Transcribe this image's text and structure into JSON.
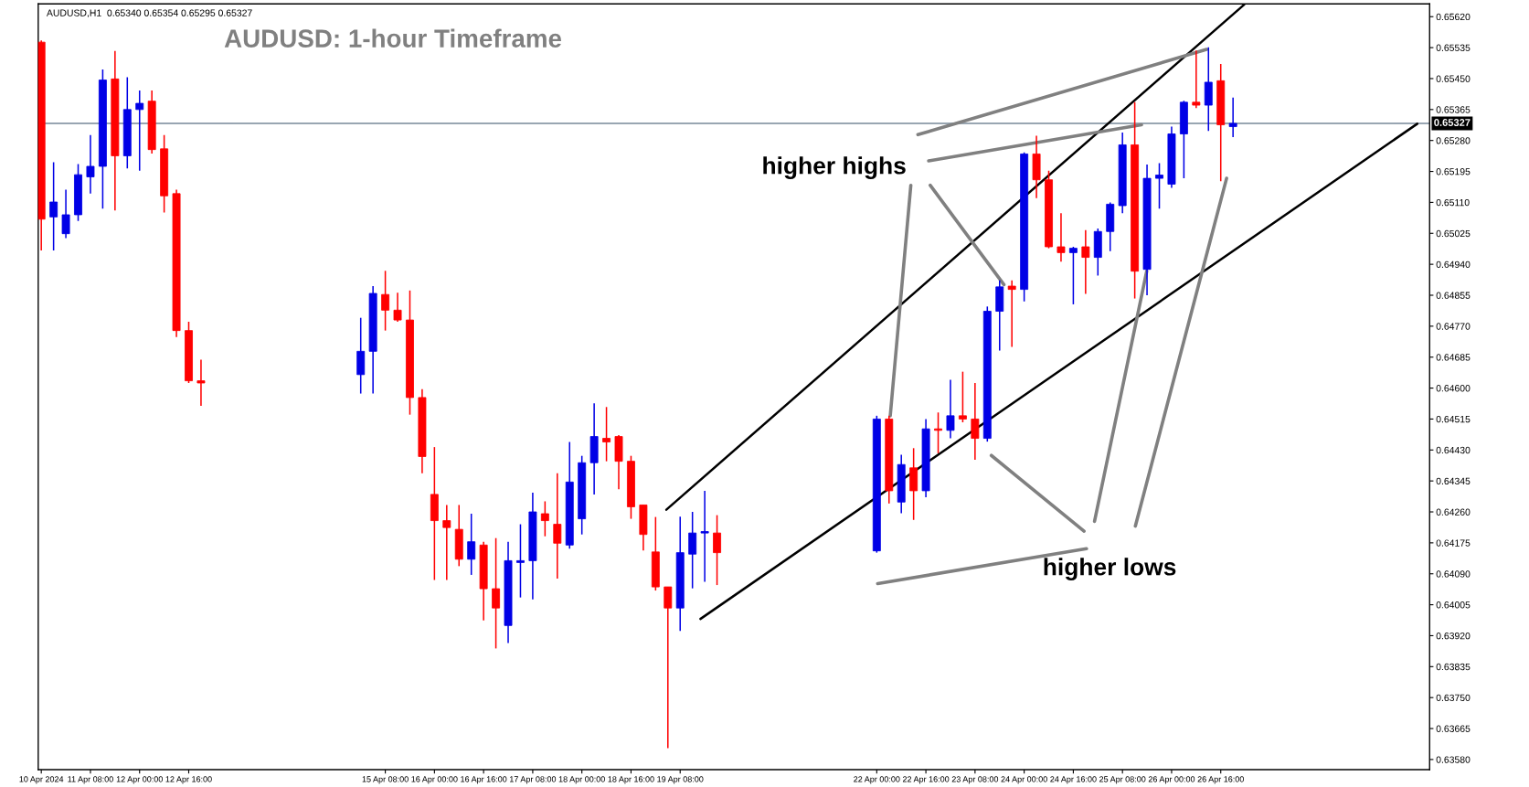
{
  "chart_data": {
    "type": "candlestick",
    "title": "AUDUSD: 1-hour Timeframe",
    "subtitle": "AUDUSD,H1  0.65340 0.65354 0.65295 0.65327",
    "x": [
      "2024-04-10T16:00",
      "2024-04-10T20:00",
      "2024-04-11T00:00",
      "2024-04-11T04:00",
      "2024-04-11T08:00",
      "2024-04-11T12:00",
      "2024-04-11T16:00",
      "2024-04-11T20:00",
      "2024-04-12T00:00",
      "2024-04-12T04:00",
      "2024-04-12T08:00",
      "2024-04-12T12:00",
      "2024-04-12T16:00",
      "2024-04-12T20:00",
      "2024-04-15T00:00",
      "2024-04-15T04:00",
      "2024-04-15T08:00",
      "2024-04-15T12:00",
      "2024-04-15T16:00",
      "2024-04-15T20:00",
      "2024-04-16T00:00",
      "2024-04-16T04:00",
      "2024-04-16T08:00",
      "2024-04-16T12:00",
      "2024-04-16T16:00",
      "2024-04-16T20:00",
      "2024-04-17T00:00",
      "2024-04-17T04:00",
      "2024-04-17T08:00",
      "2024-04-17T12:00",
      "2024-04-17T16:00",
      "2024-04-17T20:00",
      "2024-04-18T00:00",
      "2024-04-18T04:00",
      "2024-04-18T08:00",
      "2024-04-18T12:00",
      "2024-04-18T16:00",
      "2024-04-18T20:00",
      "2024-04-19T00:00",
      "2024-04-19T04:00",
      "2024-04-19T08:00",
      "2024-04-19T12:00",
      "2024-04-19T16:00",
      "2024-04-19T20:00",
      "2024-04-22T00:00",
      "2024-04-22T04:00",
      "2024-04-22T08:00",
      "2024-04-22T12:00",
      "2024-04-22T16:00",
      "2024-04-22T20:00",
      "2024-04-23T00:00",
      "2024-04-23T04:00",
      "2024-04-23T08:00",
      "2024-04-23T12:00",
      "2024-04-23T16:00",
      "2024-04-23T20:00",
      "2024-04-24T00:00",
      "2024-04-24T04:00",
      "2024-04-24T08:00",
      "2024-04-24T12:00",
      "2024-04-24T16:00",
      "2024-04-24T20:00",
      "2024-04-25T00:00",
      "2024-04-25T04:00",
      "2024-04-25T08:00",
      "2024-04-25T12:00",
      "2024-04-25T16:00",
      "2024-04-25T20:00",
      "2024-04-26T00:00",
      "2024-04-26T04:00",
      "2024-04-26T08:00",
      "2024-04-26T12:00",
      "2024-04-26T16:00",
      "2024-04-26T20:00"
    ],
    "ohlc": [
      [
        0.6555,
        0.65555,
        0.64978,
        0.65064
      ],
      [
        0.6507,
        0.6522,
        0.64978,
        0.65111
      ],
      [
        0.65024,
        0.65145,
        0.65012,
        0.65076
      ],
      [
        0.65076,
        0.65215,
        0.65059,
        0.65186
      ],
      [
        0.6518,
        0.65295,
        0.65134,
        0.65209
      ],
      [
        0.65209,
        0.65475,
        0.65093,
        0.65446
      ],
      [
        0.65449,
        0.65526,
        0.65088,
        0.65238
      ],
      [
        0.65238,
        0.65454,
        0.65203,
        0.65365
      ],
      [
        0.65365,
        0.65417,
        0.65197,
        0.65382
      ],
      [
        0.65388,
        0.65417,
        0.65244,
        0.65255
      ],
      [
        0.65257,
        0.65295,
        0.65082,
        0.65128
      ],
      [
        0.65134,
        0.65145,
        0.6474,
        0.64758
      ],
      [
        0.64758,
        0.64782,
        0.64614,
        0.6462
      ],
      [
        0.6462,
        0.64678,
        0.64551,
        0.64614
      ],
      [
        0.64637,
        0.64793,
        0.64585,
        0.64701
      ],
      [
        0.64701,
        0.6488,
        0.64585,
        0.6486
      ],
      [
        0.64857,
        0.64922,
        0.64758,
        0.64814
      ],
      [
        0.64814,
        0.64862,
        0.64782,
        0.64787
      ],
      [
        0.64787,
        0.64868,
        0.64527,
        0.64574
      ],
      [
        0.64574,
        0.64597,
        0.64366,
        0.64412
      ],
      [
        0.64308,
        0.64438,
        0.64073,
        0.64236
      ],
      [
        0.64236,
        0.64279,
        0.64073,
        0.64217
      ],
      [
        0.64212,
        0.64279,
        0.64111,
        0.6413
      ],
      [
        0.6413,
        0.64255,
        0.64087,
        0.64178
      ],
      [
        0.64169,
        0.64178,
        0.63962,
        0.64049
      ],
      [
        0.64049,
        0.64188,
        0.63885,
        0.63996
      ],
      [
        0.63948,
        0.64178,
        0.639,
        0.64126
      ],
      [
        0.64121,
        0.64226,
        0.64025,
        0.64126
      ],
      [
        0.64126,
        0.64313,
        0.6402,
        0.6426
      ],
      [
        0.64255,
        0.64289,
        0.64193,
        0.64236
      ],
      [
        0.64226,
        0.64366,
        0.64077,
        0.64174
      ],
      [
        0.64169,
        0.64452,
        0.64159,
        0.64342
      ],
      [
        0.64241,
        0.64414,
        0.64198,
        0.64395
      ],
      [
        0.64395,
        0.64558,
        0.64308,
        0.64467
      ],
      [
        0.64462,
        0.64548,
        0.64399,
        0.64452
      ],
      [
        0.64467,
        0.64471,
        0.64322,
        0.64399
      ],
      [
        0.64399,
        0.64414,
        0.64241,
        0.64274
      ],
      [
        0.64279,
        0.64279,
        0.64154,
        0.64198
      ],
      [
        0.6415,
        0.64246,
        0.64044,
        0.64054
      ],
      [
        0.64054,
        0.64054,
        0.63611,
        0.63996
      ],
      [
        0.63996,
        0.64247,
        0.63933,
        0.64148
      ],
      [
        0.64144,
        0.6426,
        0.6405,
        0.64202
      ],
      [
        0.64202,
        0.64318,
        0.64068,
        0.64206
      ],
      [
        0.64202,
        0.64251,
        0.64059,
        0.64148
      ],
      [
        0.64153,
        0.64524,
        0.64148,
        0.64515
      ],
      [
        0.64515,
        0.64524,
        0.64283,
        0.64318
      ],
      [
        0.64287,
        0.64417,
        0.64256,
        0.6439
      ],
      [
        0.64381,
        0.64435,
        0.64238,
        0.64318
      ],
      [
        0.64318,
        0.64515,
        0.643,
        0.64488
      ],
      [
        0.64488,
        0.64533,
        0.64421,
        0.64484
      ],
      [
        0.64484,
        0.64623,
        0.64462,
        0.64524
      ],
      [
        0.64524,
        0.64645,
        0.64506,
        0.64515
      ],
      [
        0.64515,
        0.64614,
        0.64403,
        0.64462
      ],
      [
        0.64462,
        0.64824,
        0.64453,
        0.64811
      ],
      [
        0.64811,
        0.64896,
        0.64703,
        0.64878
      ],
      [
        0.6488,
        0.64896,
        0.64713,
        0.64871
      ],
      [
        0.64871,
        0.65247,
        0.64838,
        0.65243
      ],
      [
        0.65243,
        0.65293,
        0.65122,
        0.65172
      ],
      [
        0.65172,
        0.65197,
        0.64984,
        0.64988
      ],
      [
        0.64988,
        0.6508,
        0.64947,
        0.64972
      ],
      [
        0.64972,
        0.64988,
        0.6483,
        0.64984
      ],
      [
        0.64988,
        0.65034,
        0.64859,
        0.64959
      ],
      [
        0.64959,
        0.65038,
        0.64909,
        0.6503
      ],
      [
        0.6503,
        0.6511,
        0.64976,
        0.65105
      ],
      [
        0.65101,
        0.65302,
        0.6508,
        0.65268
      ],
      [
        0.65268,
        0.65385,
        0.64846,
        0.64921
      ],
      [
        0.64926,
        0.65214,
        0.64855,
        0.65176
      ],
      [
        0.65176,
        0.65218,
        0.65093,
        0.65185
      ],
      [
        0.6516,
        0.65318,
        0.6515,
        0.65298
      ],
      [
        0.65298,
        0.65389,
        0.65176,
        0.65385
      ],
      [
        0.65385,
        0.65527,
        0.65369,
        0.65377
      ],
      [
        0.65377,
        0.65536,
        0.65306,
        0.6544
      ],
      [
        0.65444,
        0.6549,
        0.65168,
        0.65323
      ],
      [
        0.65318,
        0.65398,
        0.65289,
        0.65327
      ]
    ],
    "colors": [
      "#ff0000",
      "#0000e6",
      "#0000e6",
      "#0000e6",
      "#0000e6",
      "#0000e6",
      "#ff0000",
      "#0000e6",
      "#0000e6",
      "#ff0000",
      "#ff0000",
      "#ff0000",
      "#ff0000",
      "#ff0000",
      "#0000e6",
      "#0000e6",
      "#ff0000",
      "#ff0000",
      "#ff0000",
      "#ff0000",
      "#ff0000",
      "#ff0000",
      "#ff0000",
      "#0000e6",
      "#ff0000",
      "#ff0000",
      "#0000e6",
      "#0000e6",
      "#0000e6",
      "#ff0000",
      "#ff0000",
      "#0000e6",
      "#0000e6",
      "#0000e6",
      "#ff0000",
      "#ff0000",
      "#ff0000",
      "#ff0000",
      "#ff0000",
      "#ff0000",
      "#0000e6",
      "#0000e6",
      "#0000e6",
      "#ff0000",
      "#0000e6",
      "#ff0000",
      "#0000e6",
      "#ff0000",
      "#0000e6",
      "#ff0000",
      "#0000e6",
      "#ff0000",
      "#ff0000",
      "#0000e6",
      "#0000e6",
      "#ff0000",
      "#0000e6",
      "#ff0000",
      "#ff0000",
      "#ff0000",
      "#0000e6",
      "#ff0000",
      "#0000e6",
      "#0000e6",
      "#0000e6",
      "#ff0000",
      "#0000e6",
      "#0000e6",
      "#0000e6",
      "#0000e6",
      "#ff0000",
      "#0000e6",
      "#ff0000",
      "#0000e6"
    ],
    "series": [
      {
        "type": "line",
        "color": "#000000",
        "x": [
          "2024-04-19T03:30",
          "2024-04-26T23:36"
        ],
        "values": [
          0.64266,
          0.65653
        ]
      },
      {
        "type": "line",
        "color": "#000000",
        "x": [
          "2024-04-19T14:36",
          "2024-04-29T08:00"
        ],
        "values": [
          0.63966,
          0.65326
        ]
      },
      {
        "type": "line",
        "color": "#808080",
        "x": [
          "2024-04-22T11:06",
          "2024-04-22T04:24"
        ],
        "values": [
          0.65157,
          0.64524
        ]
      },
      {
        "type": "line",
        "color": "#808080",
        "x": [
          "2024-04-22T17:24",
          "2024-04-23T17:24"
        ],
        "values": [
          0.65157,
          0.64884
        ]
      },
      {
        "type": "line",
        "color": "#808080",
        "x": [
          "2024-04-22T16:54",
          "2024-04-25T14:12"
        ],
        "values": [
          0.65224,
          0.65323
        ]
      },
      {
        "type": "line",
        "color": "#808080",
        "x": [
          "2024-04-22T13:24",
          "2024-04-26T11:24"
        ],
        "values": [
          0.65296,
          0.6553
        ]
      },
      {
        "type": "line",
        "color": "#808080",
        "x": [
          "2024-04-24T20:18",
          "2024-04-22T00:18"
        ],
        "values": [
          0.64159,
          0.64063
        ]
      },
      {
        "type": "line",
        "color": "#808080",
        "x": [
          "2024-04-24T19:30",
          "2024-04-23T13:18"
        ],
        "values": [
          0.64207,
          0.64415
        ]
      },
      {
        "type": "line",
        "color": "#808080",
        "x": [
          "2024-04-24T22:54",
          "2024-04-25T15:54"
        ],
        "values": [
          0.64234,
          0.64921
        ]
      },
      {
        "type": "line",
        "color": "#808080",
        "x": [
          "2024-04-25T12:12",
          "2024-04-26T17:54"
        ],
        "values": [
          0.64221,
          0.65176
        ]
      }
    ],
    "annotations": [
      "higher highs",
      "higher lows"
    ],
    "ref_lines": [
      {
        "axis": "y",
        "value": 0.65327,
        "label": "0.65327",
        "color": "#778899"
      }
    ],
    "xlim": [
      "2024-04-10T15:00",
      "2024-04-29T12:00"
    ],
    "xticks": [
      {
        "value": "2024-04-10T16:00",
        "label": "10 Apr 2024"
      },
      {
        "value": "2024-04-11T08:00",
        "label": "11 Apr 08:00"
      },
      {
        "value": "2024-04-12T00:00",
        "label": "12 Apr 00:00"
      },
      {
        "value": "2024-04-12T16:00",
        "label": "12 Apr 16:00"
      },
      {
        "value": "2024-04-15T08:00",
        "label": "15 Apr 08:00"
      },
      {
        "value": "2024-04-16T00:00",
        "label": "16 Apr 00:00"
      },
      {
        "value": "2024-04-16T16:00",
        "label": "16 Apr 16:00"
      },
      {
        "value": "2024-04-17T08:00",
        "label": "17 Apr 08:00"
      },
      {
        "value": "2024-04-18T00:00",
        "label": "18 Apr 00:00"
      },
      {
        "value": "2024-04-18T16:00",
        "label": "18 Apr 16:00"
      },
      {
        "value": "2024-04-19T08:00",
        "label": "19 Apr 08:00"
      },
      {
        "value": "2024-04-22T00:00",
        "label": "22 Apr 00:00"
      },
      {
        "value": "2024-04-22T16:00",
        "label": "22 Apr 16:00"
      },
      {
        "value": "2024-04-23T08:00",
        "label": "23 Apr 08:00"
      },
      {
        "value": "2024-04-24T00:00",
        "label": "24 Apr 00:00"
      },
      {
        "value": "2024-04-24T16:00",
        "label": "24 Apr 16:00"
      },
      {
        "value": "2024-04-25T08:00",
        "label": "25 Apr 08:00"
      },
      {
        "value": "2024-04-26T00:00",
        "label": "26 Apr 00:00"
      },
      {
        "value": "2024-04-26T16:00",
        "label": "26 Apr 16:00"
      }
    ],
    "ylim": [
      0.63552,
      0.65655
    ],
    "yticks": [
      {
        "value": 0.6562,
        "label": "0.65620"
      },
      {
        "value": 0.65535,
        "label": "0.65535"
      },
      {
        "value": 0.6545,
        "label": "0.65450"
      },
      {
        "value": 0.65365,
        "label": "0.65365"
      },
      {
        "value": 0.6528,
        "label": "0.65280"
      },
      {
        "value": 0.65195,
        "label": "0.65195"
      },
      {
        "value": 0.6511,
        "label": "0.65110"
      },
      {
        "value": 0.65025,
        "label": "0.65025"
      },
      {
        "value": 0.6494,
        "label": "0.64940"
      },
      {
        "value": 0.64855,
        "label": "0.64855"
      },
      {
        "value": 0.6477,
        "label": "0.64770"
      },
      {
        "value": 0.64685,
        "label": "0.64685"
      },
      {
        "value": 0.646,
        "label": "0.64600"
      },
      {
        "value": 0.64515,
        "label": "0.64515"
      },
      {
        "value": 0.6443,
        "label": "0.64430"
      },
      {
        "value": 0.64345,
        "label": "0.64345"
      },
      {
        "value": 0.6426,
        "label": "0.64260"
      },
      {
        "value": 0.64175,
        "label": "0.64175"
      },
      {
        "value": 0.6409,
        "label": "0.64090"
      },
      {
        "value": 0.64005,
        "label": "0.64005"
      },
      {
        "value": 0.6392,
        "label": "0.63920"
      },
      {
        "value": 0.63835,
        "label": "0.63835"
      },
      {
        "value": 0.6375,
        "label": "0.63750"
      },
      {
        "value": 0.63665,
        "label": "0.63665"
      },
      {
        "value": 0.6358,
        "label": "0.63580"
      }
    ]
  }
}
